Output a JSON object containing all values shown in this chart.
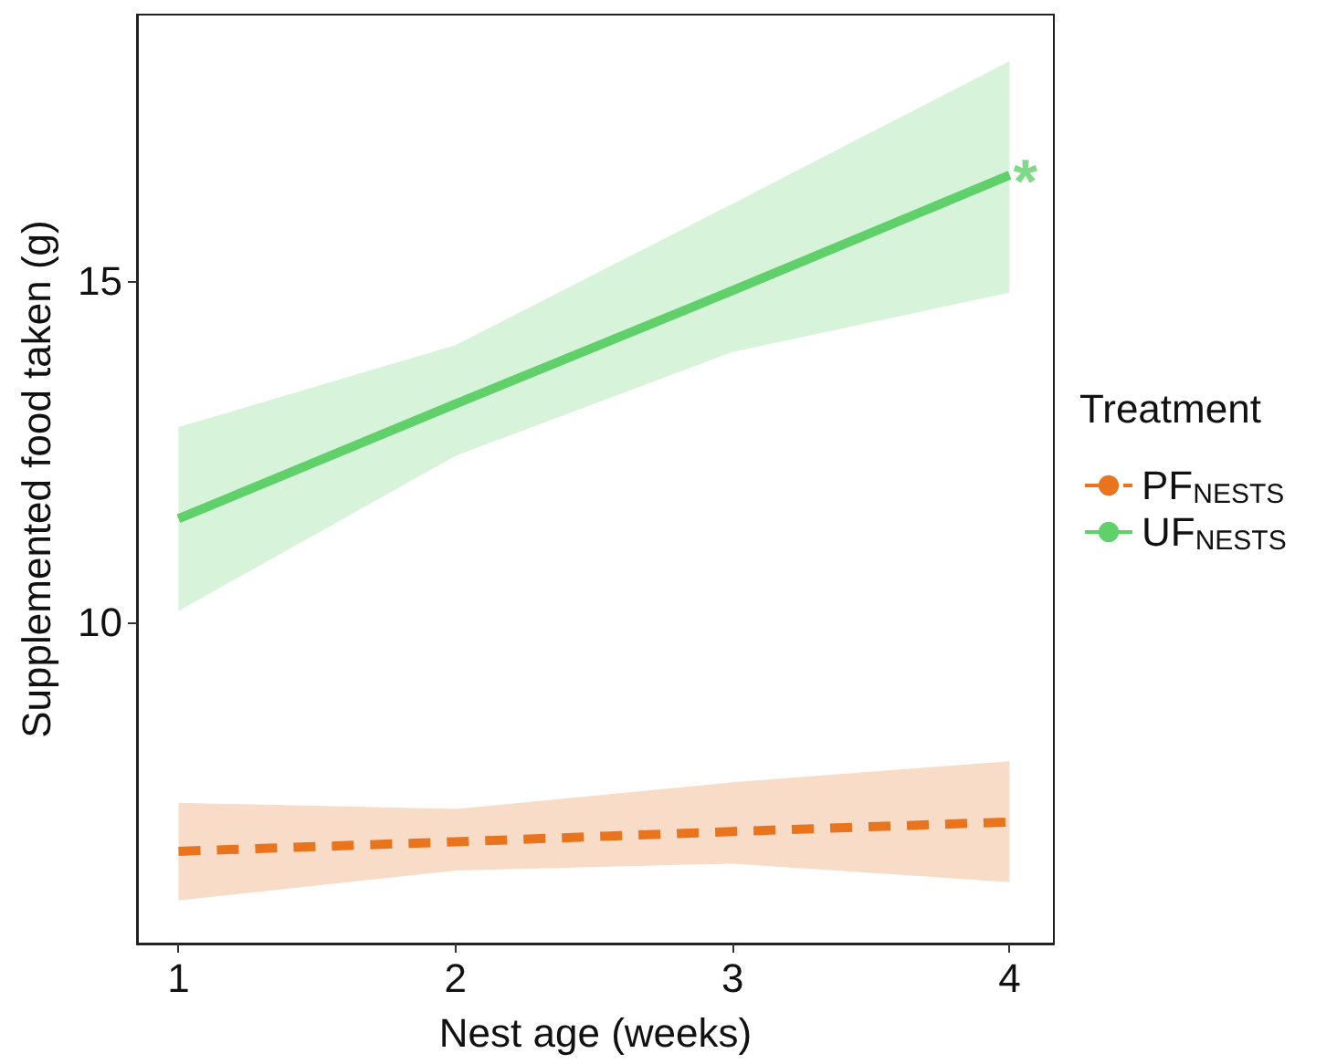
{
  "chart_data": {
    "type": "line",
    "xlabel": "Nest age (weeks)",
    "ylabel": "Supplemented food taken (g)",
    "legend_title": "Treatment",
    "legend": "right",
    "grid": false,
    "marker": "none",
    "x": [
      1,
      2,
      3,
      4
    ],
    "xlim": [
      0.85,
      4.16
    ],
    "xticks": [
      1,
      2,
      3,
      4
    ],
    "ylim": [
      5.3,
      18.9
    ],
    "yticks": [
      10,
      15
    ],
    "series": [
      {
        "name": "PF$_{NESTS}$",
        "color": "#e8741e",
        "line_style": "dashed",
        "values": [
          6.65,
          6.79,
          6.94,
          7.08
        ],
        "lower": [
          5.93,
          6.37,
          6.47,
          6.2
        ],
        "upper": [
          7.36,
          7.27,
          7.66,
          7.97
        ]
      },
      {
        "name": "UF$_{NESTS}$",
        "color": "#5fd06a",
        "line_style": "solid",
        "values": [
          11.52,
          13.2,
          14.86,
          16.55
        ],
        "lower": [
          10.17,
          12.44,
          13.96,
          14.83
        ],
        "upper": [
          12.86,
          14.06,
          16.13,
          18.22
        ]
      }
    ],
    "annotations": [
      {
        "text": "*",
        "x": 4,
        "y": 16.55
      }
    ]
  }
}
